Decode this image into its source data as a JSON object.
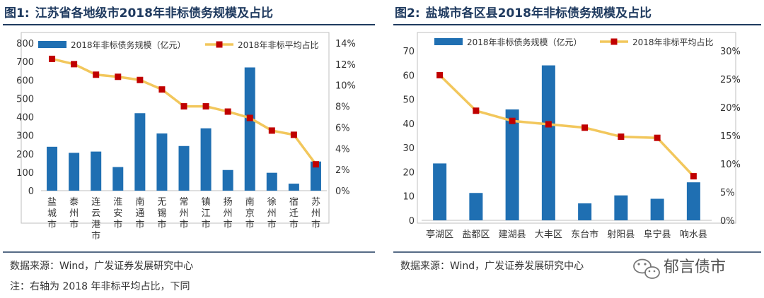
{
  "charts": [
    {
      "figure_label": "图1:",
      "title": "江苏省各地级市2018年非标债务规模及占比",
      "legend": [
        "2018年非标债务规模（亿元）",
        "2018年非标平均占比"
      ],
      "left_ticks": [
        "0",
        "100",
        "200",
        "300",
        "400",
        "500",
        "600",
        "700",
        "800"
      ],
      "right_ticks": [
        "0%",
        "2%",
        "4%",
        "6%",
        "8%",
        "10%",
        "12%",
        "14%"
      ],
      "categories": [
        "盐城市",
        "泰州市",
        "连云港市",
        "淮安市",
        "南通市",
        "无锡市",
        "常州市",
        "镇江市",
        "扬州市",
        "南京市",
        "徐州市",
        "宿迁市",
        "苏州市"
      ],
      "source": "数据来源：Wind，广发证券发展研究中心"
    },
    {
      "figure_label": "图2:",
      "title": "盐城市各区县2018年非标债务规模及占比",
      "legend": [
        "2018年非标债务规模（亿元）",
        "2018年非标平均占比"
      ],
      "left_ticks": [
        "0",
        "10",
        "20",
        "30",
        "40",
        "50",
        "60",
        "70"
      ],
      "right_ticks": [
        "0%",
        "5%",
        "10%",
        "15%",
        "20%",
        "25%",
        "30%"
      ],
      "categories": [
        "亭湖区",
        "盐都区",
        "建湖县",
        "大丰区",
        "东台市",
        "射阳县",
        "阜宁县",
        "响水县"
      ],
      "source": "数据来源：Wind，广发证券发展研究中心"
    }
  ],
  "note": "注：右轴为 2018 年非标平均占比，下同",
  "watermark": "郁言债市",
  "colors": {
    "bar": "#1f6fb2",
    "line": "#f2c75c",
    "marker": "#c00000",
    "frame": "#7f7f7f"
  },
  "chart_data": [
    {
      "type": "bar+line",
      "title": "江苏省各地级市2018年非标债务规模及占比",
      "categories": [
        "盐城市",
        "泰州市",
        "连云港市",
        "淮安市",
        "南通市",
        "无锡市",
        "常州市",
        "镇江市",
        "扬州市",
        "南京市",
        "徐州市",
        "宿迁市",
        "苏州市"
      ],
      "series": [
        {
          "name": "2018年非标债务规模（亿元）",
          "type": "bar",
          "axis": "left",
          "values": [
            238,
            205,
            212,
            128,
            420,
            310,
            242,
            338,
            112,
            668,
            97,
            38,
            158
          ]
        },
        {
          "name": "2018年非标平均占比",
          "type": "line",
          "axis": "right",
          "values": [
            12.5,
            12.0,
            11.0,
            10.8,
            10.5,
            9.6,
            8.0,
            8.0,
            7.5,
            6.9,
            5.7,
            5.3,
            2.5
          ]
        }
      ],
      "ylim_left": [
        0,
        800
      ],
      "ylim_right": [
        0,
        14
      ],
      "ylabel_right_unit": "%"
    },
    {
      "type": "bar+line",
      "title": "盐城市各区县2018年非标债务规模及占比",
      "categories": [
        "亭湖区",
        "盐都区",
        "建湖县",
        "大丰区",
        "东台市",
        "射阳县",
        "阜宁县",
        "响水县"
      ],
      "series": [
        {
          "name": "2018年非标债务规模（亿元）",
          "type": "bar",
          "axis": "left",
          "values": [
            23.5,
            11.3,
            45.8,
            64.0,
            7.0,
            10.3,
            8.9,
            15.7
          ]
        },
        {
          "name": "2018年非标平均占比",
          "type": "line",
          "axis": "right",
          "values": [
            25.7,
            19.4,
            17.6,
            17.0,
            16.4,
            14.8,
            14.6,
            7.8
          ]
        }
      ],
      "ylim_left": [
        0,
        70
      ],
      "ylim_right": [
        0,
        30
      ],
      "ylabel_right_unit": "%"
    }
  ]
}
